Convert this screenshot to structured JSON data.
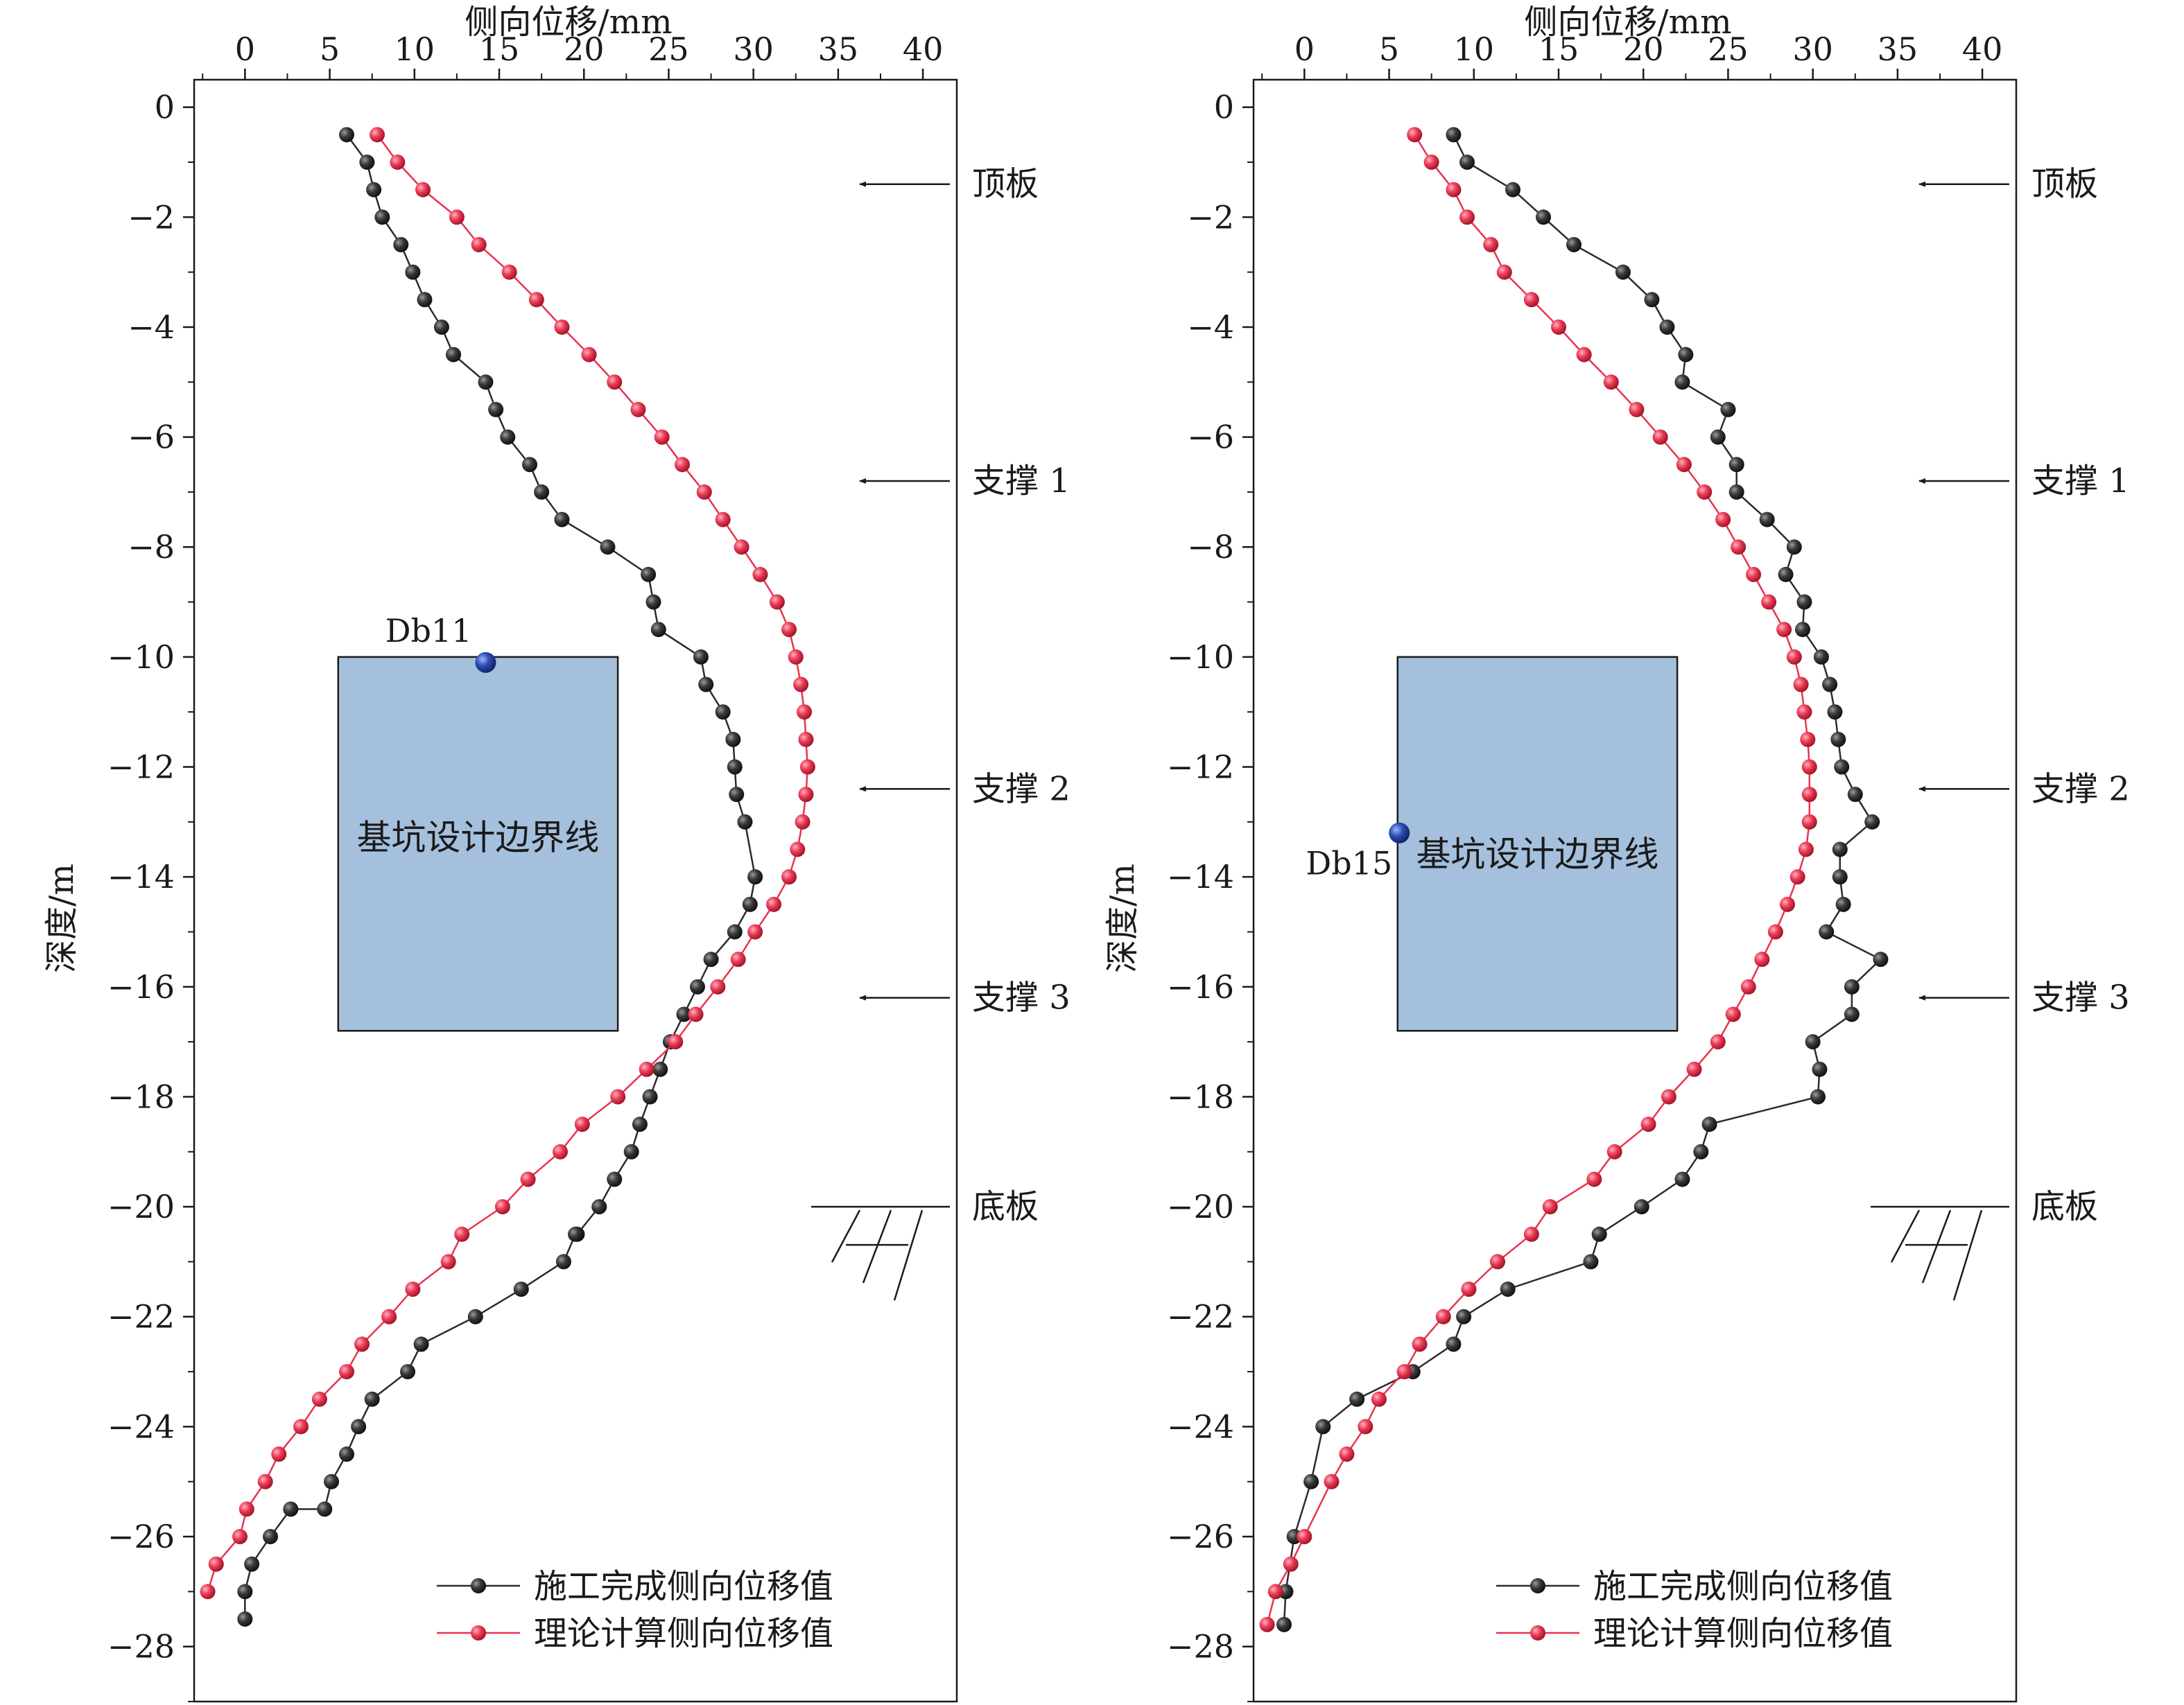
{
  "colors": {
    "measured": "#2b2b2b",
    "theory": "#e8334f",
    "box_fill": "#a5c0dd",
    "box_stroke": "#1a1a1a",
    "point": "#2d4fb5"
  },
  "chart_data": [
    {
      "type": "line",
      "x_axis": {
        "label": "侧向位移/mm",
        "position": "top",
        "range": [
          -3,
          42
        ],
        "ticks": [
          0,
          5,
          10,
          15,
          20,
          25,
          30,
          35,
          40
        ]
      },
      "y_axis": {
        "label": "深度/m",
        "range": [
          -29,
          0.5
        ],
        "ticks": [
          0,
          -2,
          -4,
          -6,
          -8,
          -10,
          -12,
          -14,
          -16,
          -18,
          -20,
          -22,
          -24,
          -26,
          -28
        ]
      },
      "legend": {
        "position": "bottom-right",
        "entries": [
          "施工完成侧向位移值",
          "理论计算侧向位移值"
        ]
      },
      "box": {
        "label": "基坑设计边界线",
        "x_range": [
          5.5,
          22
        ],
        "y_range": [
          -16.8,
          -10
        ]
      },
      "point": {
        "label": "Db11",
        "x": 14.2,
        "y": -10.1,
        "label_side": "left-above"
      },
      "levels": [
        {
          "label": "顶板",
          "depth": -1.4,
          "type": "arrow"
        },
        {
          "label": "支撑 1",
          "depth": -6.8,
          "type": "arrow"
        },
        {
          "label": "支撑 2",
          "depth": -12.4,
          "type": "arrow"
        },
        {
          "label": "支撑 3",
          "depth": -16.2,
          "type": "arrow"
        },
        {
          "label": "底板",
          "depth": -20,
          "type": "ground"
        }
      ],
      "series": [
        {
          "name": "施工完成侧向位移值",
          "x": [
            6,
            7.2,
            7.6,
            8.1,
            9.2,
            9.9,
            10.6,
            11.6,
            12.3,
            14.2,
            14.8,
            15.5,
            16.8,
            17.5,
            18.7,
            21.4,
            23.8,
            24.1,
            24.4,
            26.9,
            27.2,
            28.2,
            28.8,
            28.9,
            29,
            29.5,
            30.1,
            29.8,
            28.9,
            27.5,
            26.7,
            25.9,
            25.1,
            24.5,
            23.9,
            23.3,
            22.8,
            21.8,
            20.9,
            19.6,
            19.5,
            18.8,
            16.3,
            13.6,
            10.4,
            9.6,
            7.5,
            6.7,
            6,
            5.1,
            4.7,
            2.7,
            1.5,
            0.4,
            0,
            0
          ],
          "y": [
            -0.5,
            -1,
            -1.5,
            -2,
            -2.5,
            -3,
            -3.5,
            -4,
            -4.5,
            -5,
            -5.5,
            -6,
            -6.5,
            -7,
            -7.5,
            -8,
            -8.5,
            -9,
            -9.5,
            -10,
            -10.5,
            -11,
            -11.5,
            -12,
            -12.5,
            -13,
            -14,
            -14.5,
            -15,
            -15.5,
            -16,
            -16.5,
            -17,
            -17.5,
            -18,
            -18.5,
            -19,
            -19.5,
            -20,
            -20.5,
            -20.5,
            -21,
            -21.5,
            -22,
            -22.5,
            -23,
            -23.5,
            -24,
            -24.5,
            -25,
            -25.5,
            -25.5,
            -26,
            -26.5,
            -27,
            -27.5
          ]
        },
        {
          "name": "理论计算侧向位移值",
          "x": [
            7.8,
            9,
            10.5,
            12.5,
            13.8,
            15.6,
            17.2,
            18.7,
            20.3,
            21.8,
            23.2,
            24.6,
            25.8,
            27.1,
            28.2,
            29.3,
            30.4,
            31.4,
            32.1,
            32.5,
            32.8,
            33,
            33.1,
            33.2,
            33.1,
            32.9,
            32.6,
            32.1,
            31.2,
            30.1,
            29.1,
            27.9,
            26.6,
            25.4,
            23.7,
            22,
            19.9,
            18.6,
            16.7,
            15.2,
            12.8,
            12,
            9.9,
            8.5,
            6.9,
            6,
            4.4,
            3.3,
            2,
            1.2,
            0.1,
            -0.3,
            -1.7,
            -2.2
          ],
          "y": [
            -0.5,
            -1,
            -1.5,
            -2,
            -2.5,
            -3,
            -3.5,
            -4,
            -4.5,
            -5,
            -5.5,
            -6,
            -6.5,
            -7,
            -7.5,
            -8,
            -8.5,
            -9,
            -9.5,
            -10,
            -10.5,
            -11,
            -11.5,
            -12,
            -12.5,
            -13,
            -13.5,
            -14,
            -14.5,
            -15,
            -15.5,
            -16,
            -16.5,
            -17,
            -17.5,
            -18,
            -18.5,
            -19,
            -19.5,
            -20,
            -20.5,
            -21,
            -21.5,
            -22,
            -22.5,
            -23,
            -23.5,
            -24,
            -24.5,
            -25,
            -25.5,
            -26,
            -26.5,
            -27
          ]
        }
      ]
    },
    {
      "type": "line",
      "x_axis": {
        "label": "侧向位移/mm",
        "position": "top",
        "range": [
          -3,
          42
        ],
        "ticks": [
          0,
          5,
          10,
          15,
          20,
          25,
          30,
          35,
          40
        ]
      },
      "y_axis": {
        "label": "深度/m",
        "range": [
          -29,
          0.5
        ],
        "ticks": [
          0,
          -2,
          -4,
          -6,
          -8,
          -10,
          -12,
          -14,
          -16,
          -18,
          -20,
          -22,
          -24,
          -26,
          -28
        ]
      },
      "legend": {
        "position": "bottom-right",
        "entries": [
          "施工完成侧向位移值",
          "理论计算侧向位移值"
        ]
      },
      "box": {
        "label": "基坑设计边界线",
        "x_range": [
          5.5,
          22
        ],
        "y_range": [
          -16.8,
          -10
        ]
      },
      "point": {
        "label": "Db15",
        "x": 5.6,
        "y": -13.2,
        "label_side": "left-below"
      },
      "levels": [
        {
          "label": "顶板",
          "depth": -1.4,
          "type": "arrow"
        },
        {
          "label": "支撑 1",
          "depth": -6.8,
          "type": "arrow"
        },
        {
          "label": "支撑 2",
          "depth": -12.4,
          "type": "arrow"
        },
        {
          "label": "支撑 3",
          "depth": -16.2,
          "type": "arrow"
        },
        {
          "label": "底板",
          "depth": -20,
          "type": "ground"
        }
      ],
      "series": [
        {
          "name": "施工完成侧向位移值",
          "x": [
            8.8,
            9.6,
            12.3,
            14.1,
            15.9,
            18.8,
            20.5,
            21.4,
            22.5,
            22.3,
            25,
            24.4,
            25.5,
            25.5,
            27.3,
            28.9,
            28.4,
            29.5,
            29.4,
            30.5,
            31,
            31.3,
            31.5,
            31.7,
            32.5,
            33.5,
            31.6,
            31.6,
            31.8,
            30.8,
            34,
            32.3,
            32.3,
            30,
            30.4,
            30.3,
            23.9,
            23.4,
            22.3,
            19.9,
            17.4,
            16.9,
            12,
            9.4,
            8.8,
            6.4,
            3.1,
            1.1,
            0.4,
            -0.6,
            -1.1,
            -1.2
          ],
          "y": [
            -0.5,
            -1,
            -1.5,
            -2,
            -2.5,
            -3,
            -3.5,
            -4,
            -4.5,
            -5,
            -5.5,
            -6,
            -6.5,
            -7,
            -7.5,
            -8,
            -8.5,
            -9,
            -9.5,
            -10,
            -10.5,
            -11,
            -11.5,
            -12,
            -12.5,
            -13,
            -13.5,
            -14,
            -14.5,
            -15,
            -15.5,
            -16,
            -16.5,
            -17,
            -17.5,
            -18,
            -18.5,
            -19,
            -19.5,
            -20,
            -20.5,
            -21,
            -21.5,
            -22,
            -22.5,
            -23,
            -23.5,
            -24,
            -25,
            -26,
            -27,
            -27.6
          ]
        },
        {
          "name": "理论计算侧向位移值",
          "x": [
            6.5,
            7.5,
            8.8,
            9.6,
            11,
            11.8,
            13.4,
            15,
            16.5,
            18.1,
            19.6,
            21,
            22.4,
            23.6,
            24.7,
            25.6,
            26.5,
            27.4,
            28.3,
            28.9,
            29.3,
            29.5,
            29.7,
            29.8,
            29.8,
            29.8,
            29.6,
            29.1,
            28.5,
            27.8,
            27,
            26.2,
            25.3,
            24.4,
            23,
            21.5,
            20.3,
            18.3,
            17.1,
            14.5,
            13.4,
            11.4,
            9.7,
            8.2,
            6.8,
            5.9,
            4.4,
            3.6,
            2.5,
            1.6,
            0,
            -0.8,
            -1.7,
            -2.2
          ],
          "y": [
            -0.5,
            -1,
            -1.5,
            -2,
            -2.5,
            -3,
            -3.5,
            -4,
            -4.5,
            -5,
            -5.5,
            -6,
            -6.5,
            -7,
            -7.5,
            -8,
            -8.5,
            -9,
            -9.5,
            -10,
            -10.5,
            -11,
            -11.5,
            -12,
            -12.5,
            -13,
            -13.5,
            -14,
            -14.5,
            -15,
            -15.5,
            -16,
            -16.5,
            -17,
            -17.5,
            -18,
            -18.5,
            -19,
            -19.5,
            -20,
            -20.5,
            -21,
            -21.5,
            -22,
            -22.5,
            -23,
            -23.5,
            -24,
            -24.5,
            -25,
            -26,
            -26.5,
            -27,
            -27.6
          ]
        }
      ]
    }
  ]
}
